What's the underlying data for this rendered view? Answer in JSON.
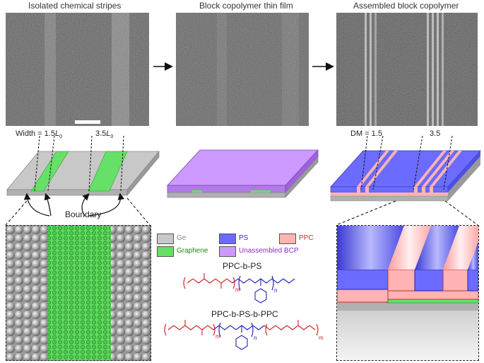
{
  "panels": {
    "titles": [
      "Isolated chemical stripes",
      "Block copolymer thin film",
      "Assembled block copolymer"
    ]
  },
  "labels": {
    "width": "Width = 1.5",
    "width_sym": "L",
    "width_sub": "0",
    "width2": "3.5",
    "width2_sym": "L",
    "width2_sub": "0",
    "dm": "DM = 1.5",
    "dm2": "3.5",
    "boundary": "Boundary"
  },
  "legend": [
    {
      "label": "Ge",
      "color": "#c8c8c8",
      "text_color": "#8a8a8a"
    },
    {
      "label": "Graphene",
      "color": "#66e066",
      "text_color": "#1f8a1f"
    },
    {
      "label": "PS",
      "color": "#6b6bff",
      "text_color": "#2a2ad0"
    },
    {
      "label": "PPC",
      "color": "#ffb3b3",
      "text_color": "#d03030"
    },
    {
      "label": "Unassembled BCP",
      "color": "#cc99ff",
      "text_color": "#8a2ad0"
    }
  ],
  "chemistry": {
    "diblock": "PPC-b-PS",
    "triblock": "PPC-b-PS-b-PPC",
    "sub_m": "m",
    "sub_n": "n"
  },
  "colors": {
    "ps": "#6b6bff",
    "ppc": "#ffb3b3",
    "graphene": "#66e066",
    "ge": "#c8c8c8",
    "bcp": "#cc99ff"
  }
}
